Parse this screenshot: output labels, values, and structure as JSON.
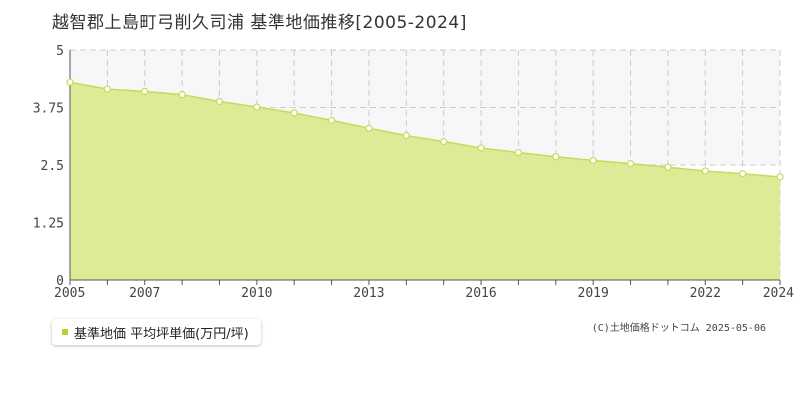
{
  "header": {
    "title": "越智郡上島町弓削久司浦 基準地価推移[2005-2024]"
  },
  "legend": {
    "label": "基準地価 平均坪単価(万円/坪)"
  },
  "credit": "(C)土地価格ドットコム 2025-05-06",
  "colors": {
    "fill": "#dcec96",
    "line": "#c3dc5a",
    "marker_fill": "#ffffff",
    "grid": "#cccccc",
    "band": "#f7f7f9",
    "legend_swatch": "#b5d334"
  },
  "chart_data": {
    "type": "area",
    "title": "越智郡上島町弓削久司浦 基準地価推移[2005-2024]",
    "xlabel": "",
    "ylabel": "",
    "x": [
      2005,
      2006,
      2007,
      2008,
      2009,
      2010,
      2011,
      2012,
      2013,
      2014,
      2015,
      2016,
      2017,
      2018,
      2019,
      2020,
      2021,
      2022,
      2023,
      2024
    ],
    "series": [
      {
        "name": "基準地価 平均坪単価(万円/坪)",
        "values": [
          4.3,
          4.15,
          4.1,
          4.03,
          3.88,
          3.76,
          3.63,
          3.47,
          3.3,
          3.14,
          3.01,
          2.87,
          2.77,
          2.68,
          2.6,
          2.53,
          2.45,
          2.37,
          2.31,
          2.24
        ]
      }
    ],
    "xlim": [
      2005,
      2024
    ],
    "ylim": [
      0,
      5
    ],
    "yticks": [
      0,
      1.25,
      2.5,
      3.75,
      5
    ],
    "ytick_labels": [
      "0",
      "1.25",
      "2.5",
      "3.75",
      "5"
    ],
    "xtick_labels": [
      "2005",
      "2007",
      "2010",
      "2013",
      "2016",
      "2019",
      "2022",
      "2024"
    ],
    "grid": true,
    "legend_position": "bottom-left"
  }
}
